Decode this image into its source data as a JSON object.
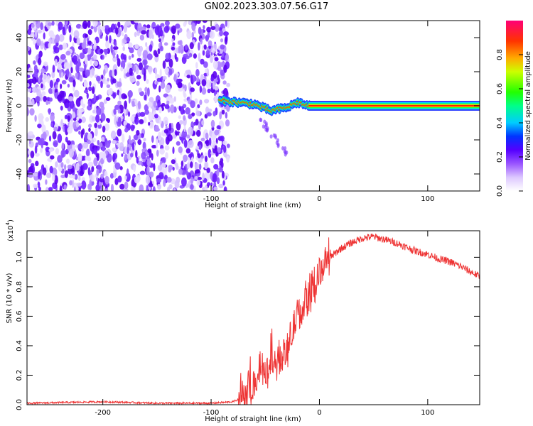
{
  "title": "GN02.2023.303.07.56.G17",
  "spectrogram": {
    "xlabel": "Height of straight line (km)",
    "ylabel": "Frequency (Hz)",
    "x_ticks": [
      "-200",
      "-100",
      "0",
      "100"
    ],
    "y_ticks": [
      "40",
      "20",
      "0",
      "-20",
      "-40"
    ],
    "colorbar_label": "Normalized spectral amplitude",
    "colorbar_ticks": [
      "0.0",
      "0.2",
      "0.4",
      "0.6",
      "0.8"
    ]
  },
  "snr": {
    "xlabel": "Height of straight line (km)",
    "ylabel": "SNR (10 * v/v)",
    "y_scale_label": "(x10",
    "y_scale_exp": "4",
    "x_ticks": [
      "-200",
      "-100",
      "0",
      "100"
    ],
    "y_ticks": [
      "0.0",
      "0.2",
      "0.4",
      "0.6",
      "0.8",
      "1.0"
    ]
  },
  "chart_data": [
    {
      "type": "heatmap",
      "name": "spectrogram",
      "xlabel": "Height of straight line (km)",
      "ylabel": "Frequency (Hz)",
      "xlim": [
        -270,
        148
      ],
      "ylim": [
        -50,
        50
      ],
      "colorbar": {
        "label": "Normalized spectral amplitude",
        "range": [
          0,
          1
        ]
      },
      "description_regions": [
        {
          "x_range": [
            -270,
            -90
          ],
          "freq_range": [
            -50,
            50
          ],
          "amplitude": 0.15,
          "pattern": "noise"
        },
        {
          "x_range": [
            -90,
            -10
          ],
          "freq_center_track": [
            [
              -90,
              3
            ],
            [
              -75,
              2
            ],
            [
              -60,
              1
            ],
            [
              -45,
              -3
            ],
            [
              -30,
              -1
            ],
            [
              -20,
              2
            ],
            [
              -10,
              0
            ]
          ],
          "amplitude": 0.6
        },
        {
          "x_range": [
            -10,
            148
          ],
          "freq_center": 0,
          "amplitude": 1.0
        }
      ]
    },
    {
      "type": "line",
      "name": "snr",
      "xlabel": "Height of straight line (km)",
      "ylabel": "SNR (10 * v/v)",
      "xlim": [
        -270,
        148
      ],
      "ylim": [
        0,
        1.18
      ],
      "color": "#ee3333",
      "x": [
        -270,
        -200,
        -150,
        -100,
        -80,
        -70,
        -60,
        -55,
        -50,
        -45,
        -40,
        -35,
        -30,
        -25,
        -20,
        -15,
        -10,
        -5,
        0,
        10,
        20,
        30,
        40,
        50,
        60,
        70,
        80,
        90,
        100,
        110,
        120,
        130,
        140,
        148
      ],
      "y": [
        0.01,
        0.02,
        0.01,
        0.01,
        0.02,
        0.05,
        0.15,
        0.25,
        0.2,
        0.3,
        0.28,
        0.32,
        0.35,
        0.5,
        0.6,
        0.65,
        0.75,
        0.78,
        0.9,
        1.0,
        1.06,
        1.1,
        1.13,
        1.14,
        1.12,
        1.1,
        1.07,
        1.04,
        1.02,
        0.99,
        0.97,
        0.94,
        0.9,
        0.87
      ]
    }
  ]
}
